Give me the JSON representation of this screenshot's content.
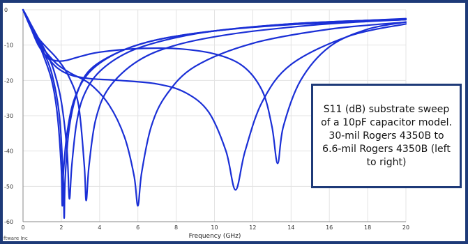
{
  "chart_data": {
    "type": "line",
    "title": "",
    "xlabel": "Frequency (GHz)",
    "ylabel": "",
    "xlim": [
      0,
      20
    ],
    "ylim": [
      -60,
      0
    ],
    "xticks": [
      0,
      2,
      4,
      6,
      8,
      10,
      12,
      14,
      16,
      18,
      20
    ],
    "yticks": [
      0,
      -10,
      -20,
      -30,
      -40,
      -50,
      -60
    ],
    "grid": true,
    "line_color": "#1a2fd6",
    "series": [
      {
        "x": [
          0,
          0.3,
          0.7,
          1.0,
          1.5,
          1.8,
          2.0,
          2.05,
          2.1,
          2.3,
          2.7,
          3.5,
          5,
          7,
          10,
          14,
          18,
          20
        ],
        "y": [
          0,
          -3,
          -8,
          -12,
          -20,
          -30,
          -45,
          -55.5,
          -47,
          -35,
          -25,
          -17.5,
          -12,
          -8.5,
          -6,
          -4.2,
          -3.2,
          -2.8
        ]
      },
      {
        "x": [
          0,
          0.3,
          0.7,
          1.0,
          1.5,
          1.9,
          2.1,
          2.15,
          2.2,
          2.4,
          2.8,
          3.5,
          5,
          7,
          10,
          14,
          18,
          20
        ],
        "y": [
          0,
          -3,
          -7.5,
          -11,
          -18,
          -30,
          -48,
          -59,
          -48,
          -34,
          -24,
          -17,
          -12,
          -8.5,
          -6,
          -4,
          -3,
          -2.6
        ]
      },
      {
        "x": [
          0,
          0.4,
          0.8,
          1.2,
          1.6,
          2.0,
          2.3,
          2.42,
          2.55,
          2.8,
          3.2,
          4,
          5.5,
          7.5,
          10,
          14,
          18,
          20
        ],
        "y": [
          0,
          -4,
          -8,
          -12,
          -17,
          -26,
          -40,
          -53.5,
          -44,
          -32,
          -24,
          -17.5,
          -12,
          -8.5,
          -6,
          -4,
          -3,
          -2.5
        ]
      },
      {
        "x": [
          0,
          0.4,
          0.8,
          1.2,
          1.8,
          2.4,
          2.9,
          3.2,
          3.3,
          3.45,
          3.8,
          4.5,
          6,
          8,
          11,
          15,
          18,
          20
        ],
        "y": [
          0,
          -4.5,
          -8,
          -10.5,
          -14,
          -19,
          -27,
          -44,
          -54,
          -44,
          -31,
          -22,
          -14.5,
          -10,
          -6.8,
          -4.4,
          -3.3,
          -2.8
        ]
      },
      {
        "x": [
          0,
          0.4,
          0.8,
          1.2,
          1.8,
          2.5,
          3.5,
          4.5,
          5.3,
          5.8,
          6.0,
          6.2,
          6.7,
          7.5,
          9,
          12,
          16,
          20
        ],
        "y": [
          0,
          -5,
          -9,
          -12,
          -15.5,
          -18,
          -21,
          -27,
          -36,
          -47,
          -55.5,
          -46,
          -33,
          -24,
          -16,
          -9.5,
          -5.5,
          -3.5
        ]
      },
      {
        "x": [
          0,
          0.4,
          0.8,
          1.2,
          1.8,
          2.5,
          3.5,
          5,
          7,
          8.5,
          9.7,
          10.6,
          11.1,
          11.6,
          12.5,
          14,
          17,
          20
        ],
        "y": [
          0,
          -5,
          -10,
          -13,
          -16.5,
          -18.5,
          -19.5,
          -20,
          -21,
          -23.5,
          -29,
          -40,
          -51,
          -40,
          -26,
          -15.5,
          -7.5,
          -4
        ]
      },
      {
        "x": [
          0,
          0.4,
          0.8,
          1.3,
          1.8,
          2.3,
          3,
          4,
          6,
          8,
          10,
          11.5,
          12.5,
          13.0,
          13.3,
          13.6,
          14.5,
          16,
          18,
          20
        ],
        "y": [
          0,
          -5,
          -10,
          -13.5,
          -14.5,
          -14.3,
          -13.2,
          -12,
          -11,
          -11,
          -12.5,
          -16,
          -23,
          -33,
          -43.5,
          -33,
          -20,
          -10.5,
          -5.5,
          -3.5
        ]
      }
    ]
  },
  "annotation": {
    "text": "S11 (dB) substrate sweep of a 10pF capacitor model. 30-mil Rogers 4350B to 6.6-mil Rogers 4350B (left to right)"
  },
  "footer": {
    "copyright": "ftware Inc"
  }
}
